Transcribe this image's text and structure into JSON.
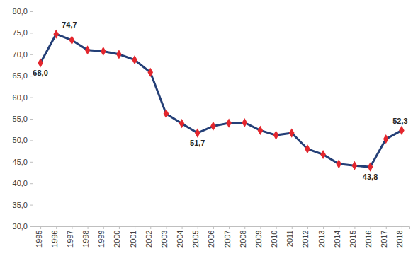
{
  "chart_data": {
    "type": "line",
    "categories": [
      "1995",
      "1996",
      "1997",
      "1998",
      "1999",
      "2000",
      "2001",
      "2002",
      "2003",
      "2004",
      "2005",
      "2006",
      "2007",
      "2008",
      "2009",
      "2010",
      "2011",
      "2012",
      "2013",
      "2014",
      "2015",
      "2016",
      "2017",
      "2018"
    ],
    "values": [
      68.0,
      74.7,
      73.3,
      71.0,
      70.7,
      70.0,
      68.7,
      65.8,
      56.2,
      53.9,
      51.7,
      53.3,
      54.0,
      54.1,
      52.3,
      51.2,
      51.7,
      48.0,
      46.7,
      44.5,
      44.1,
      43.8,
      50.3,
      52.3
    ],
    "value_labels": [
      "68,0",
      "74,7",
      null,
      null,
      null,
      null,
      null,
      null,
      null,
      null,
      "51,7",
      null,
      null,
      null,
      null,
      null,
      null,
      null,
      null,
      null,
      null,
      "43,8",
      null,
      "52,3"
    ],
    "color": "#243f77",
    "marker": "diamond",
    "marker_color": "#e3262d",
    "ylim": [
      30,
      80
    ],
    "yticks": [
      {
        "value": 30,
        "label": "30,0"
      },
      {
        "value": 35,
        "label": "35,0"
      },
      {
        "value": 40,
        "label": "40,0"
      },
      {
        "value": 45,
        "label": "45,0"
      },
      {
        "value": 50,
        "label": "50,0"
      },
      {
        "value": 55,
        "label": "55,0"
      },
      {
        "value": 60,
        "label": "60,0"
      },
      {
        "value": 65,
        "label": "65,0"
      },
      {
        "value": 70,
        "label": "70,0"
      },
      {
        "value": 75,
        "label": "75,0"
      },
      {
        "value": 80,
        "label": "80,0"
      }
    ],
    "grid": false
  }
}
